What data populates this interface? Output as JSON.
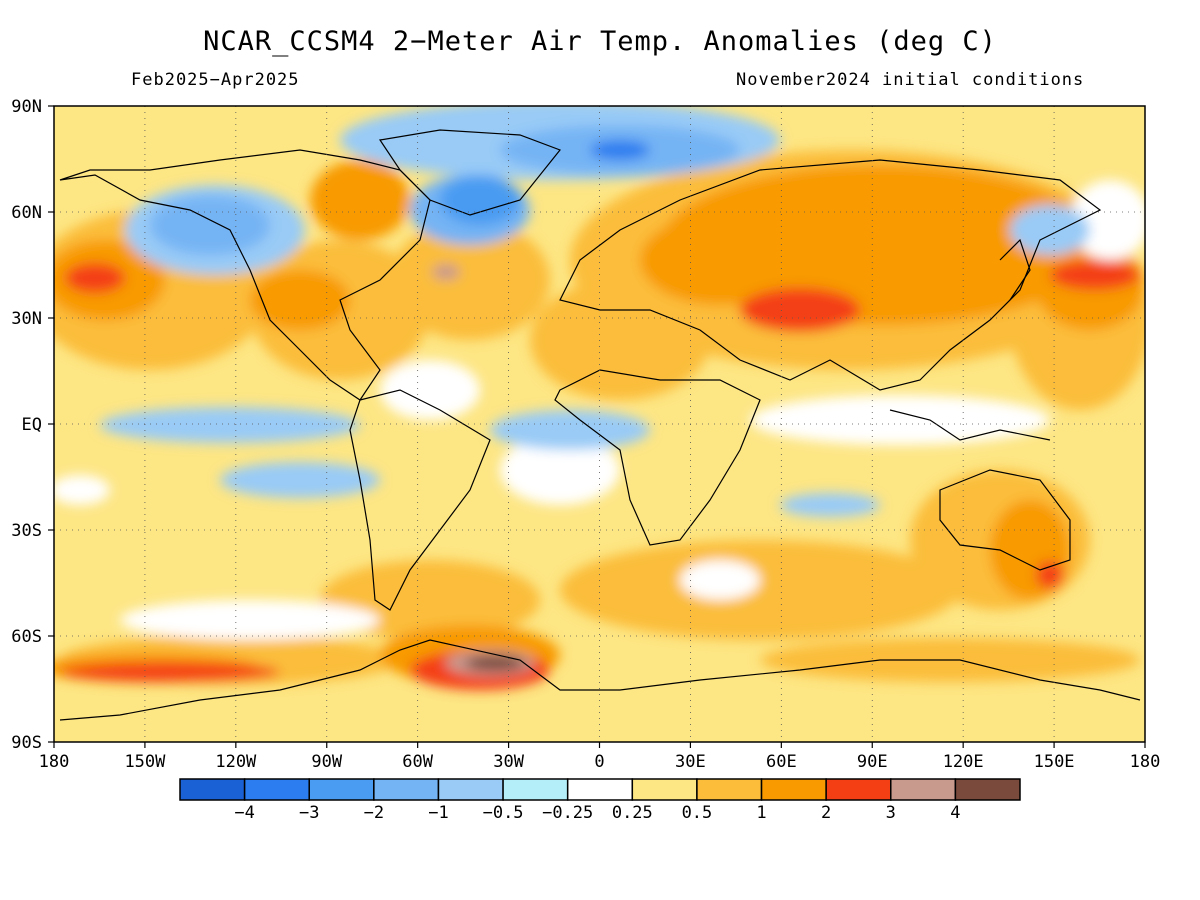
{
  "title": "NCAR_CCSM4 2−Meter Air Temp. Anomalies (deg C)",
  "period": "Feb2025−Apr2025",
  "initial_conditions": "November2024 initial conditions",
  "map": {
    "lat_labels": [
      "90N",
      "60N",
      "30N",
      "EQ",
      "30S",
      "60S",
      "90S"
    ],
    "lon_labels": [
      "180",
      "150W",
      "120W",
      "90W",
      "60W",
      "30W",
      "0",
      "30E",
      "60E",
      "90E",
      "120E",
      "150E",
      "180"
    ],
    "projection": "equirectangular",
    "gridlines": "dotted"
  },
  "colorbar": {
    "colors": [
      "#1a61d6",
      "#2b7df0",
      "#4a9bf2",
      "#74b4f4",
      "#99cbf6",
      "#b4eef8",
      "#ffffff",
      "#fde684",
      "#fbbd3a",
      "#f89a00",
      "#f43f14",
      "#c89a8e",
      "#7a4a3c"
    ],
    "labels": [
      "−4",
      "−3",
      "−2",
      "−1",
      "−0.5",
      "−0.25",
      "0.25",
      "0.5",
      "1",
      "2",
      "3",
      "4"
    ]
  },
  "anomaly_regions": [
    {
      "name": "Eurasia",
      "category": "1 to 2"
    },
    {
      "name": "Tibet / Central Asia",
      "category": "2 to 3"
    },
    {
      "name": "Greenland and Arctic Atlantic",
      "category": "-2 to -3"
    },
    {
      "name": "Weddell Sea / Antarctic Peninsula",
      "category": "above 4"
    },
    {
      "name": "Southern Ocean south of Pacific",
      "category": "2 to 3"
    },
    {
      "name": "Equatorial East Pacific",
      "category": "-0.5 to -1"
    },
    {
      "name": "Northeast Pacific",
      "category": "-1 to -2"
    },
    {
      "name": "North Pacific near Japan",
      "category": "2 to 3"
    }
  ]
}
